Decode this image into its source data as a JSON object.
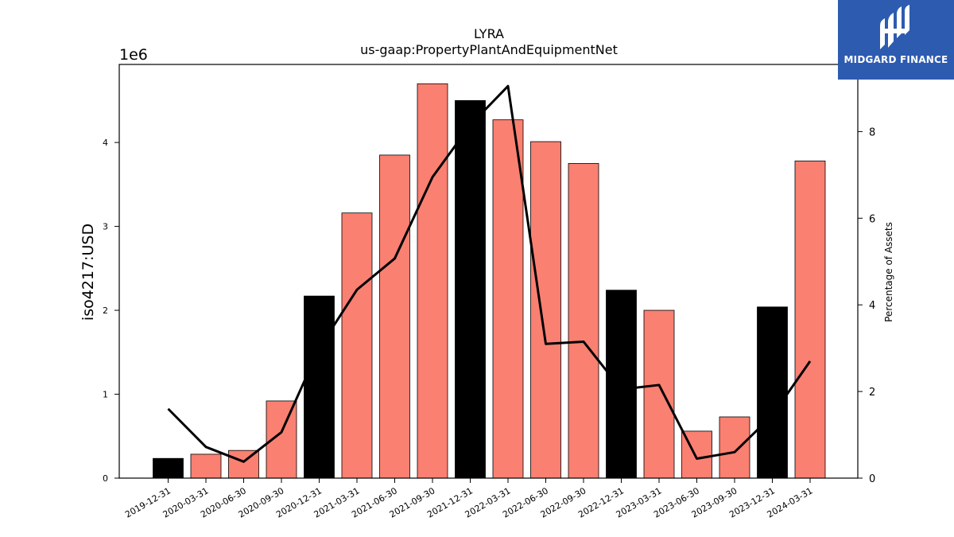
{
  "chart_data": {
    "type": "bar",
    "title": "LYRA",
    "subtitle": "us-gaap:PropertyPlantAndEquipmentNet",
    "ylabel": "iso4217:USD",
    "y_offset_label": "1e6",
    "y2label": "Percentage of Assets",
    "categories": [
      "2019-12-31",
      "2020-03-31",
      "2020-06-30",
      "2020-09-30",
      "2020-12-31",
      "2021-03-31",
      "2021-06-30",
      "2021-09-30",
      "2021-12-31",
      "2022-03-31",
      "2022-06-30",
      "2022-09-30",
      "2022-12-31",
      "2023-03-31",
      "2023-06-30",
      "2023-09-30",
      "2023-12-31",
      "2024-03-31"
    ],
    "bar_values": [
      235000,
      285000,
      330000,
      920000,
      2170000,
      3160000,
      3850000,
      4700000,
      4500000,
      4270000,
      4010000,
      3750000,
      2240000,
      2000000,
      560000,
      730000,
      2040000,
      3780000
    ],
    "bar_colors": [
      "#000000",
      "#fa8072",
      "#fa8072",
      "#fa8072",
      "#000000",
      "#fa8072",
      "#fa8072",
      "#fa8072",
      "#000000",
      "#fa8072",
      "#fa8072",
      "#fa8072",
      "#000000",
      "#fa8072",
      "#fa8072",
      "#fa8072",
      "#000000",
      "#fa8072"
    ],
    "line_values": [
      1.6,
      0.72,
      0.38,
      1.06,
      3.0,
      4.35,
      5.07,
      6.95,
      8.15,
      9.05,
      3.1,
      3.15,
      2.05,
      2.15,
      0.45,
      0.6,
      1.45,
      2.7
    ],
    "ylim": [
      0,
      4930000
    ],
    "y_ticks": [
      0,
      1,
      2,
      3,
      4
    ],
    "y2lim": [
      0,
      9.55
    ],
    "y2_ticks": [
      0,
      2,
      4,
      6,
      8
    ],
    "grid": false
  },
  "branding": {
    "logo_text": "MIDGARD FINANCE",
    "logo_color": "#2d5bb0"
  }
}
